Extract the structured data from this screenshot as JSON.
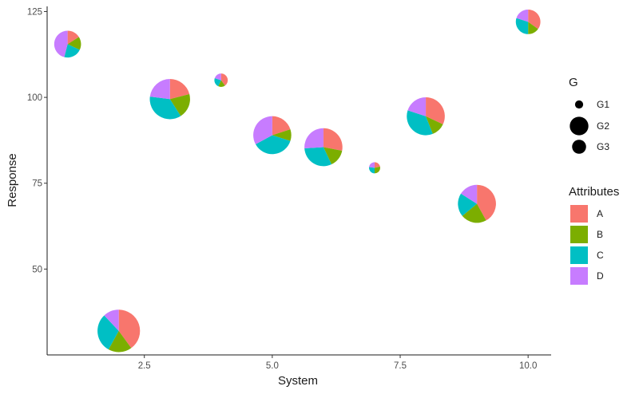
{
  "chart_data": {
    "type": "scatter",
    "title": "",
    "xlabel": "System",
    "ylabel": "Response",
    "xlim": [
      0.6,
      10.45
    ],
    "ylim": [
      25,
      126.5
    ],
    "x_ticks": [
      2.5,
      5.0,
      7.5,
      10.0
    ],
    "x_tick_labels": [
      "2.5",
      "5.0",
      "7.5",
      "10.0"
    ],
    "y_ticks": [
      50,
      75,
      100,
      125
    ],
    "y_tick_labels": [
      "50",
      "75",
      "100",
      "125"
    ],
    "grid": false,
    "legend_position": "right",
    "size_legend": {
      "title": "G",
      "items": [
        {
          "label": "G1",
          "radius": 0.7
        },
        {
          "label": "G2",
          "radius": 1.6
        },
        {
          "label": "G3",
          "radius": 1.2
        }
      ]
    },
    "fill_legend": {
      "title": "Attributes",
      "items": [
        {
          "label": "A",
          "color": "#F8766D"
        },
        {
          "label": "B",
          "color": "#7CAE00"
        },
        {
          "label": "C",
          "color": "#00BFC4"
        },
        {
          "label": "D",
          "color": "#C77CFF"
        }
      ]
    },
    "points": [
      {
        "x": 1,
        "y": 115.5,
        "radius": 1.2,
        "group": "G3",
        "slices": {
          "A": 0.16,
          "B": 0.16,
          "C": 0.22,
          "D": 0.46
        }
      },
      {
        "x": 2,
        "y": 32,
        "radius": 1.9,
        "group": "G2",
        "slices": {
          "A": 0.4,
          "B": 0.18,
          "C": 0.3,
          "D": 0.12
        }
      },
      {
        "x": 3,
        "y": 99.5,
        "radius": 1.8,
        "group": "G2",
        "slices": {
          "A": 0.21,
          "B": 0.2,
          "C": 0.36,
          "D": 0.23
        }
      },
      {
        "x": 4,
        "y": 105,
        "radius": 0.6,
        "group": "G1",
        "slices": {
          "A": 0.4,
          "B": 0.17,
          "C": 0.23,
          "D": 0.2
        }
      },
      {
        "x": 5,
        "y": 89,
        "radius": 1.7,
        "group": "G2",
        "slices": {
          "A": 0.2,
          "B": 0.1,
          "C": 0.37,
          "D": 0.33
        }
      },
      {
        "x": 6,
        "y": 85.5,
        "radius": 1.7,
        "group": "G2",
        "slices": {
          "A": 0.28,
          "B": 0.15,
          "C": 0.31,
          "D": 0.26
        }
      },
      {
        "x": 7,
        "y": 79.5,
        "radius": 0.5,
        "group": "G1",
        "slices": {
          "A": 0.22,
          "B": 0.28,
          "C": 0.27,
          "D": 0.23
        }
      },
      {
        "x": 8,
        "y": 94.5,
        "radius": 1.7,
        "group": "G2",
        "slices": {
          "A": 0.32,
          "B": 0.12,
          "C": 0.36,
          "D": 0.2
        }
      },
      {
        "x": 9,
        "y": 69,
        "radius": 1.7,
        "group": "G2",
        "slices": {
          "A": 0.42,
          "B": 0.22,
          "C": 0.2,
          "D": 0.16
        }
      },
      {
        "x": 10,
        "y": 122,
        "radius": 1.1,
        "group": "G3",
        "slices": {
          "A": 0.35,
          "B": 0.15,
          "C": 0.3,
          "D": 0.2
        }
      }
    ]
  }
}
